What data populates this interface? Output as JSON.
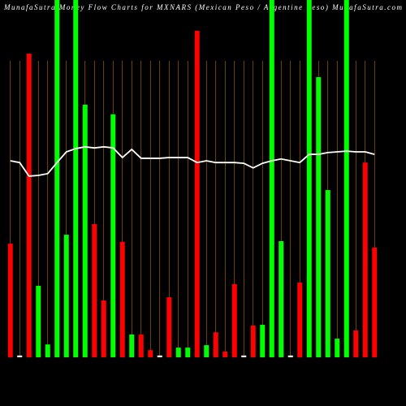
{
  "chart_data": {
    "type": "bar",
    "title": "MunafaSutra Money Flow Charts for MXNARS (Mexican Peso / Argentine Peso) MunafaSutra.com",
    "categories": [
      null,
      null,
      null,
      null,
      null,
      null,
      null,
      null,
      null,
      null,
      null,
      null,
      null,
      null,
      null,
      null,
      null,
      null,
      null,
      null,
      null,
      null,
      null,
      null,
      null,
      null,
      null,
      null,
      null,
      null,
      null,
      null,
      null,
      null,
      null,
      null,
      null,
      null,
      null,
      null
    ],
    "values": [
      31.8,
      0.5,
      85,
      20,
      3.6,
      100,
      34.3,
      100,
      70.7,
      37.3,
      15.9,
      68,
      32.3,
      6.4,
      6.4,
      2,
      0.5,
      16.8,
      2.7,
      2.7,
      91.4,
      3.4,
      7,
      1.6,
      20.5,
      0.5,
      8.9,
      9.1,
      100,
      32.5,
      0.5,
      20.9,
      100,
      78.4,
      46.8,
      5.2,
      100,
      7.5,
      54.5,
      30.7
    ],
    "colors": [
      "#ff0000",
      "#ffffff",
      "#ff0000",
      "#00ff00",
      "#00ff00",
      "#00ff00",
      "#00ff00",
      "#00ff00",
      "#00ff00",
      "#ff0000",
      "#ff0000",
      "#00ff00",
      "#ff0000",
      "#00ff00",
      "#ff0000",
      "#ff0000",
      "#ffffff",
      "#ff0000",
      "#00ff00",
      "#00ff00",
      "#ff0000",
      "#00ff00",
      "#ff0000",
      "#ff0000",
      "#ff0000",
      "#ffffff",
      "#ff0000",
      "#00ff00",
      "#00ff00",
      "#00ff00",
      "#ffffff",
      "#ff0000",
      "#00ff00",
      "#00ff00",
      "#00ff00",
      "#00ff00",
      "#00ff00",
      "#ff0000",
      "#ff0000",
      "#ff0000"
    ],
    "line": {
      "color": "#ffffff",
      "values": [
        55,
        54.5,
        50.7,
        50.9,
        51.4,
        54.5,
        57.5,
        58.4,
        58.9,
        58.6,
        58.9,
        58.6,
        55.9,
        58.2,
        55.7,
        55.7,
        55.7,
        55.9,
        55.9,
        55.9,
        54.5,
        55,
        54.5,
        54.5,
        54.5,
        54.3,
        53,
        54.3,
        55,
        55.5,
        55,
        54.5,
        56.8,
        56.8,
        57.3,
        57.5,
        57.7,
        57.5,
        57.5,
        56.8
      ]
    },
    "ylim": [
      0,
      100
    ],
    "grid": true,
    "grid_color": "#b8740b"
  }
}
